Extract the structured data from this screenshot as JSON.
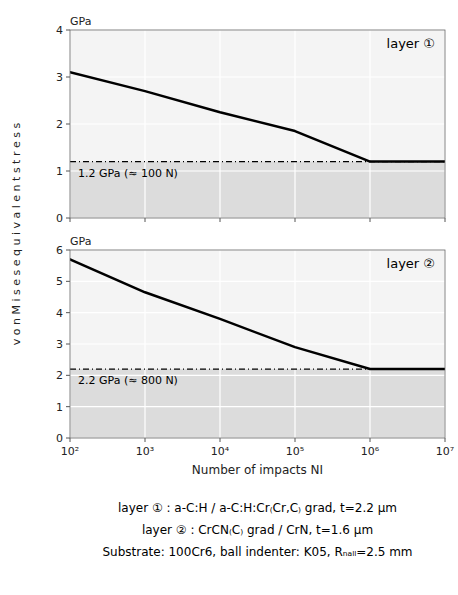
{
  "chart_data": [
    {
      "type": "line",
      "title": "layer ①",
      "y_unit_label": "GPa",
      "y_label": "v o n   M i s e s   e q u i v a l e n t   s t r e s s",
      "x": [
        100,
        1000,
        10000,
        100000,
        1000000,
        10000000
      ],
      "values": [
        3.1,
        2.7,
        2.25,
        1.85,
        1.2,
        1.2
      ],
      "color": "#000000",
      "threshold": {
        "value": 1.2,
        "label": "1.2 GPa (≈ 100 N)"
      },
      "log": "x",
      "xlim": [
        100,
        10000000
      ],
      "ylim": [
        0,
        4
      ],
      "xticks": [
        100,
        1000,
        10000,
        100000,
        1000000,
        10000000
      ],
      "yticks": [
        0,
        1,
        2,
        3,
        4
      ],
      "grid": true,
      "tick_labels": "y"
    },
    {
      "type": "line",
      "title": "layer ②",
      "y_unit_label": "GPa",
      "x_label": "Number of impacts NI",
      "x": [
        100,
        1000,
        10000,
        100000,
        1000000,
        10000000
      ],
      "values": [
        5.7,
        4.65,
        3.8,
        2.9,
        2.2,
        2.2
      ],
      "color": "#000000",
      "threshold": {
        "value": 2.2,
        "label": "2.2 GPa (≈ 800 N)"
      },
      "log": "x",
      "xlim": [
        100,
        10000000
      ],
      "ylim": [
        0,
        6
      ],
      "xticks": [
        {
          "value": 100,
          "label": "10²"
        },
        {
          "value": 1000,
          "label": "10³"
        },
        {
          "value": 10000,
          "label": "10⁴"
        },
        {
          "value": 100000,
          "label": "10⁵"
        },
        {
          "value": 1000000,
          "label": "10⁶"
        },
        {
          "value": 10000000,
          "label": "10⁷"
        }
      ],
      "yticks": [
        0,
        1,
        2,
        3,
        4,
        5,
        6
      ],
      "grid": true,
      "caption": [
        "layer ① : a-C:H / a-C:H:Cr₍Cr,C₎ grad, t=2.2 μm",
        "layer ② : CrCN₍C₎ grad / CrN, t=1.6 μm",
        "Substrate: 100Cr6, ball indenter: K05, Rₙₐₗₗ=2.5 mm"
      ]
    }
  ]
}
